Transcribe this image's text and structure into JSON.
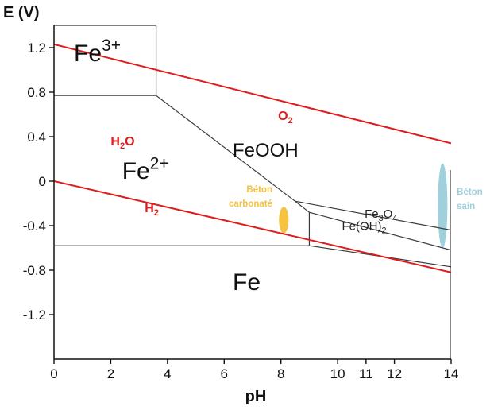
{
  "chart_data": {
    "type": "line",
    "title": "",
    "xlabel": "pH",
    "ylabel": "E (V)",
    "xlim": [
      0,
      14
    ],
    "ylim": [
      -1.6,
      1.4
    ],
    "x_ticks": [
      0,
      2,
      4,
      6,
      8,
      10,
      11,
      12,
      14
    ],
    "x_tick_labels": [
      "0",
      "2",
      "4",
      "6",
      "8",
      "10",
      "11",
      "12",
      "14"
    ],
    "y_ticks": [
      1.2,
      0.8,
      0.4,
      0,
      -0.4,
      -0.8,
      -1.2
    ],
    "y_tick_labels": [
      "1.2",
      "0.8",
      "0.4",
      "0",
      "-0.4",
      "-0.8",
      "-1.2"
    ],
    "grid": false,
    "colors": {
      "boundary": "#3a3a3a",
      "water": "#e01b1b",
      "beton_carbonate": "#f5c242",
      "beton_sain": "#9fd0dc"
    },
    "water_lines": [
      {
        "name": "O2",
        "points": [
          [
            0,
            1.23
          ],
          [
            14,
            0.34
          ]
        ]
      },
      {
        "name": "H2",
        "points": [
          [
            0,
            0.0
          ],
          [
            14,
            -0.82
          ]
        ]
      }
    ],
    "boundaries": [
      [
        [
          3.6,
          1.4
        ],
        [
          3.6,
          0.77
        ]
      ],
      [
        [
          0,
          0.77
        ],
        [
          3.6,
          0.77
        ]
      ],
      [
        [
          3.6,
          0.77
        ],
        [
          8.5,
          -0.18
        ]
      ],
      [
        [
          8.5,
          -0.18
        ],
        [
          14,
          -0.44
        ]
      ],
      [
        [
          8.5,
          -0.18
        ],
        [
          9.0,
          -0.28
        ]
      ],
      [
        [
          9.0,
          -0.28
        ],
        [
          14,
          -0.62
        ]
      ],
      [
        [
          9.0,
          -0.28
        ],
        [
          9.0,
          -0.58
        ]
      ],
      [
        [
          0,
          -0.58
        ],
        [
          9.0,
          -0.58
        ]
      ],
      [
        [
          9.0,
          -0.58
        ],
        [
          14,
          -0.77
        ]
      ],
      [
        [
          14,
          0.1
        ],
        [
          14,
          -1.6
        ]
      ]
    ],
    "regions": [
      {
        "species": "Fe",
        "sup": "3+",
        "at": [
          0.7,
          1.08
        ],
        "size": 30
      },
      {
        "species": "Fe",
        "sup": "2+",
        "at": [
          2.4,
          0.02
        ],
        "size": 30
      },
      {
        "species": "FeOOH",
        "sup": "",
        "at": [
          6.3,
          0.22
        ],
        "size": 24
      },
      {
        "species": "Fe",
        "sup": "",
        "at": [
          6.3,
          -0.98
        ],
        "size": 30
      }
    ],
    "species_labels": [
      {
        "base": "Fe",
        "sub1": "3",
        "mid": "O",
        "sub2": "4",
        "at": [
          10.95,
          -0.33
        ],
        "size": 15
      },
      {
        "base": "Fe(OH)",
        "sub1": "",
        "mid": "",
        "sub2": "2",
        "at": [
          10.15,
          -0.44
        ],
        "size": 15
      }
    ],
    "water_labels": [
      {
        "text": "O",
        "sub": "2",
        "at": [
          7.9,
          0.55
        ]
      },
      {
        "text": "H",
        "sub": "2",
        "suffix": "O",
        "at": [
          2.0,
          0.32
        ]
      },
      {
        "text": "H",
        "sub": "2",
        "suffix": "",
        "at": [
          3.2,
          -0.28
        ]
      }
    ],
    "annotations": [
      {
        "lines": [
          "Béton",
          "carbonaté"
        ],
        "at": [
          7.7,
          -0.1
        ],
        "anchor": "end",
        "color": "#f5c242"
      },
      {
        "lines": [
          "Béton",
          "sain"
        ],
        "at": [
          14.2,
          -0.12
        ],
        "anchor": "start",
        "color": "#9fd0dc"
      }
    ],
    "markers": [
      {
        "name": "beton-carbonate",
        "center": [
          8.1,
          -0.35
        ],
        "rx": 0.17,
        "ry": 0.12,
        "color": "#f5c242"
      },
      {
        "name": "beton-sain",
        "center": [
          13.7,
          -0.22
        ],
        "rx": 0.17,
        "ry": 0.38,
        "color": "#9fd0dc"
      }
    ]
  }
}
